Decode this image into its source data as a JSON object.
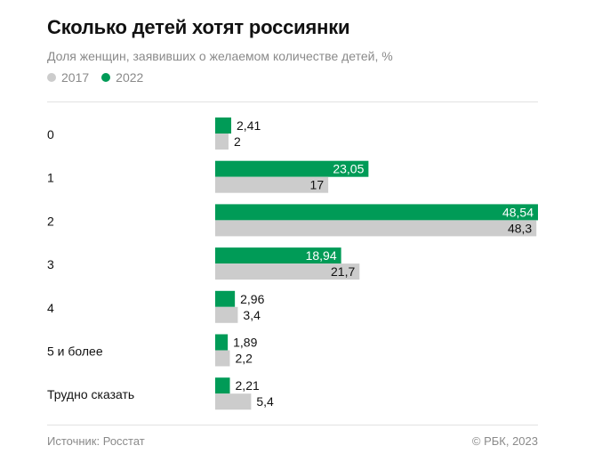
{
  "colors": {
    "series_2017": "#cccccc",
    "series_2022": "#009b57"
  },
  "footer": {
    "source": "Источник: Росстат",
    "copyright": "© РБК, 2023"
  },
  "chart_data": {
    "type": "bar",
    "orientation": "horizontal",
    "title": "Сколько детей хотят россиянки",
    "subtitle": "Доля женщин, заявивших о желаемом количестве детей, %",
    "categories": [
      "0",
      "1",
      "2",
      "3",
      "4",
      "5 и более",
      "Трудно сказать"
    ],
    "series": [
      {
        "name": "2022",
        "values": [
          2.41,
          23.05,
          48.54,
          18.94,
          2.96,
          1.89,
          2.21
        ],
        "labels": [
          "2,41",
          "23,05",
          "48,54",
          "18,94",
          "2,96",
          "1,89",
          "2,21"
        ]
      },
      {
        "name": "2017",
        "values": [
          2,
          17,
          48.3,
          21.7,
          3.4,
          2.2,
          5.4
        ],
        "labels": [
          "2",
          "17",
          "48,3",
          "21,7",
          "3,4",
          "2,2",
          "5,4"
        ]
      }
    ],
    "legend": [
      "2017",
      "2022"
    ],
    "xlim": [
      0,
      48.54
    ]
  }
}
